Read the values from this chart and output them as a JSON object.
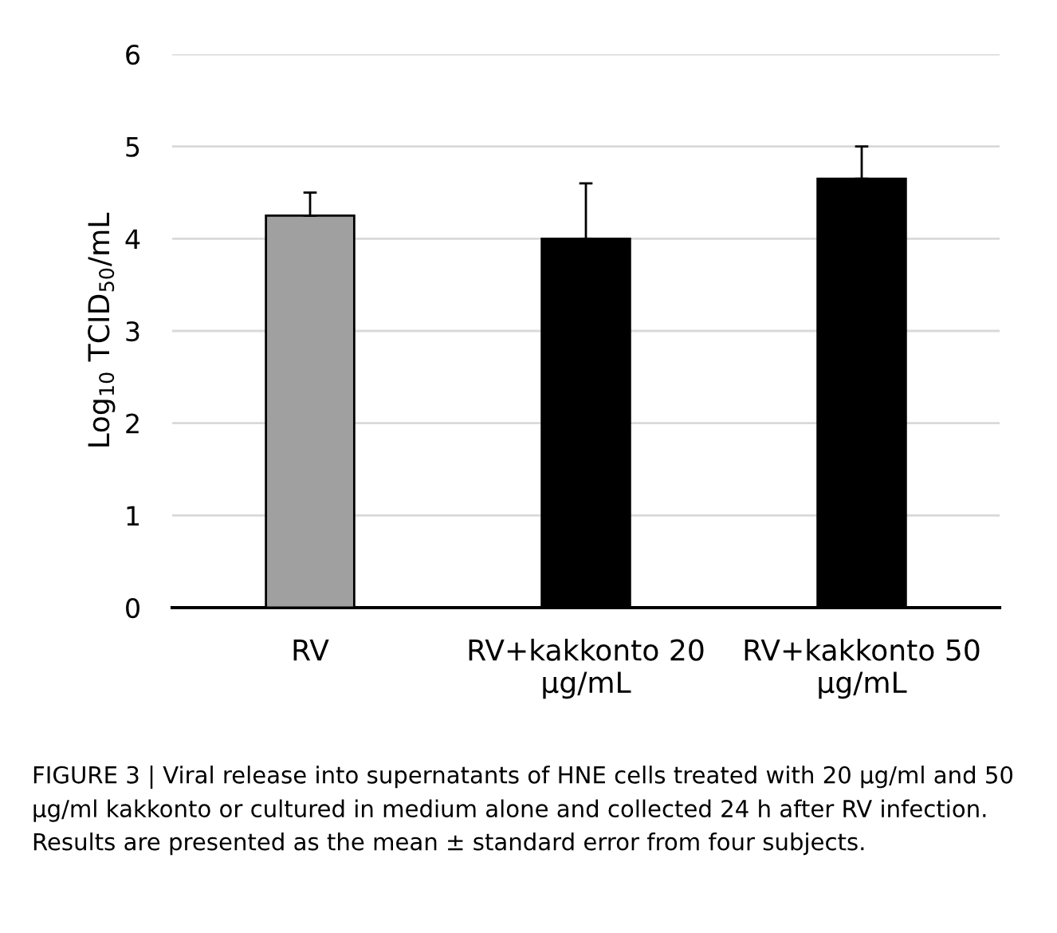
{
  "chart_data": {
    "type": "bar",
    "ylabel": "Log$_{10}$ TCID$_{50}$/mL",
    "categories": [
      "RV",
      "RV+kakkonto 20\nµg/mL",
      "RV+kakkonto 50\nµg/mL"
    ],
    "values": [
      4.25,
      4.0,
      4.65
    ],
    "colors": [
      "#a0a0a0",
      "#000000",
      "#000000"
    ],
    "errors": [
      [
        4.25,
        4.5
      ],
      [
        4.0,
        4.6
      ],
      [
        4.65,
        5.0
      ]
    ],
    "ylim": [
      0,
      6
    ],
    "yticks": [
      0,
      1,
      2,
      3,
      4,
      5,
      6
    ],
    "grid": "y",
    "annotations": [
      "FIGURE 3 | Viral release into supernatants of HNE cells treated with 20 µg/ml and 50 µg/ml kakkonto or cultured in medium alone and collected 24 h after RV infection. Results are presented as the mean ± standard error from four subjects."
    ]
  }
}
